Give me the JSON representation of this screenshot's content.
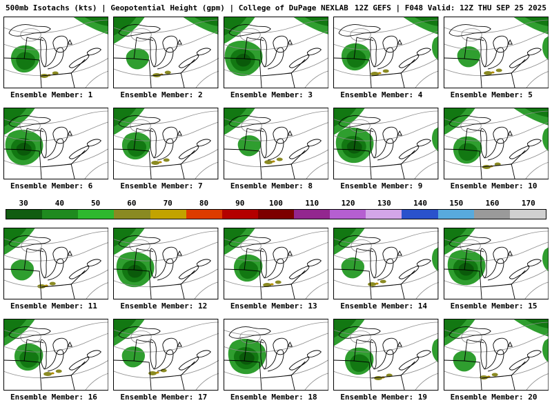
{
  "header": {
    "title_left": "500mb Isotachs (kts) | Geopotential Height (gpm) | College of DuPage NEXLAB",
    "title_right": "12Z GEFS | F048 Valid: 12Z THU SEP 25 2025"
  },
  "panels": [
    {
      "member": 1,
      "label": "Ensemble Member: 1"
    },
    {
      "member": 2,
      "label": "Ensemble Member: 2"
    },
    {
      "member": 3,
      "label": "Ensemble Member: 3"
    },
    {
      "member": 4,
      "label": "Ensemble Member: 4"
    },
    {
      "member": 5,
      "label": "Ensemble Member: 5"
    },
    {
      "member": 6,
      "label": "Ensemble Member: 6"
    },
    {
      "member": 7,
      "label": "Ensemble Member: 7"
    },
    {
      "member": 8,
      "label": "Ensemble Member: 8"
    },
    {
      "member": 9,
      "label": "Ensemble Member: 9"
    },
    {
      "member": 10,
      "label": "Ensemble Member: 10"
    },
    {
      "member": 11,
      "label": "Ensemble Member: 11"
    },
    {
      "member": 12,
      "label": "Ensemble Member: 12"
    },
    {
      "member": 13,
      "label": "Ensemble Member: 13"
    },
    {
      "member": 14,
      "label": "Ensemble Member: 14"
    },
    {
      "member": 15,
      "label": "Ensemble Member: 15"
    },
    {
      "member": 16,
      "label": "Ensemble Member: 16"
    },
    {
      "member": 17,
      "label": "Ensemble Member: 17"
    },
    {
      "member": 18,
      "label": "Ensemble Member: 18"
    },
    {
      "member": 19,
      "label": "Ensemble Member: 19"
    },
    {
      "member": 20,
      "label": "Ensemble Member: 20"
    }
  ],
  "colorbar": {
    "tick_labels": [
      "30",
      "40",
      "50",
      "60",
      "70",
      "80",
      "90",
      "100",
      "110",
      "120",
      "130",
      "140",
      "150",
      "160",
      "170"
    ],
    "segment_colors": [
      "#115c11",
      "#1f8a1f",
      "#2eb82e",
      "#8a8a22",
      "#c2a300",
      "#dd3b00",
      "#b40000",
      "#7d0000",
      "#93278f",
      "#b55fd1",
      "#d3a6e8",
      "#2a52cc",
      "#58aadd",
      "#9a9a9a",
      "#d0d0d0"
    ]
  },
  "map_colors": {
    "wind_30_fill": "#2f9e2f",
    "wind_40_fill": "#127812",
    "wind_50_fill": "#0a5a0a",
    "wind_60_fill": "#8a8a22",
    "wind_70_fill": "#b08a00",
    "height_contour": "#8c8c8c",
    "geography_outline": "#000000",
    "background": "#ffffff"
  }
}
